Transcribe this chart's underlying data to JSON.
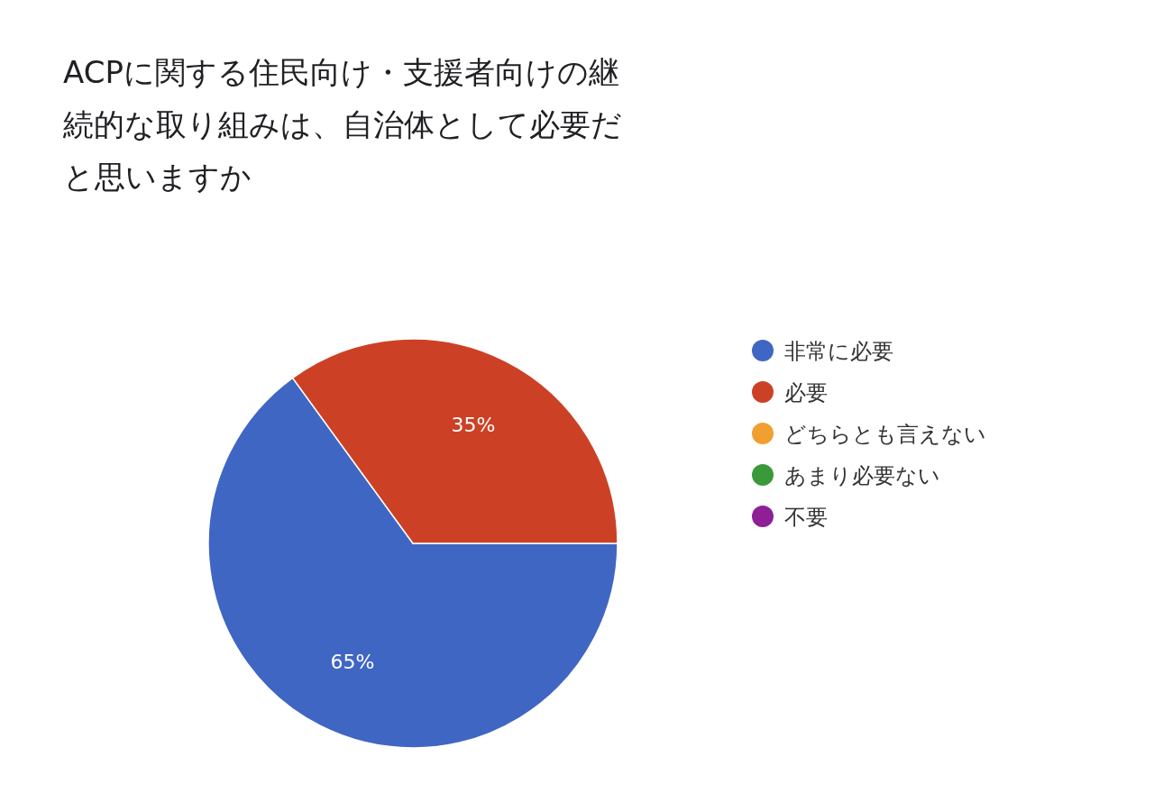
{
  "chart_data": {
    "type": "pie",
    "title": "ACPに関する住民向け・支援者向けの継続的な取り組みは、自治体として必要だと思いますか",
    "categories": [
      "非常に必要",
      "必要",
      "どちらとも言えない",
      "あまり必要ない",
      "不要"
    ],
    "values": [
      65,
      35,
      0,
      0,
      0
    ],
    "colors": [
      "#4066c4",
      "#cc4125",
      "#f0a030",
      "#3a9a3a",
      "#8e1f96"
    ],
    "value_labels": [
      "65%",
      "35%",
      null,
      null,
      null
    ],
    "legend": "right"
  }
}
